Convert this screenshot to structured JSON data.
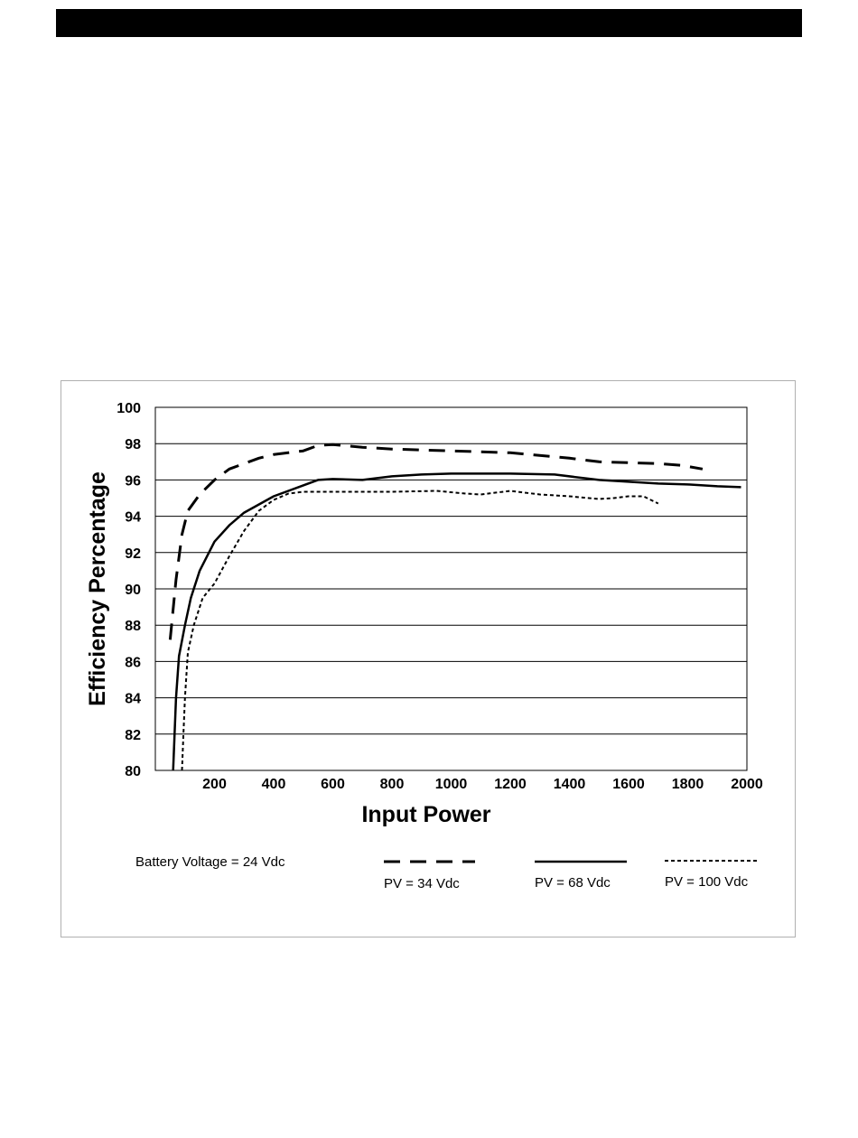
{
  "chart_data": {
    "type": "line",
    "xlabel": "Input Power",
    "ylabel": "Efficiency Percentage",
    "xlim": [
      0,
      2000
    ],
    "ylim": [
      80,
      100
    ],
    "xticks": [
      "200",
      "400",
      "600",
      "800",
      "1000",
      "1200",
      "1400",
      "1600",
      "1800",
      "2000"
    ],
    "yticks": [
      "80",
      "82",
      "84",
      "86",
      "88",
      "90",
      "92",
      "94",
      "96",
      "98",
      "100"
    ],
    "grid": "horizontal",
    "note": "Battery Voltage = 24 Vdc",
    "series": [
      {
        "name": "PV = 34 Vdc",
        "style": "dashed",
        "color": "#000000",
        "points": [
          [
            50,
            87.2
          ],
          [
            70,
            90.5
          ],
          [
            90,
            93
          ],
          [
            110,
            94.3
          ],
          [
            150,
            95.2
          ],
          [
            200,
            96
          ],
          [
            250,
            96.6
          ],
          [
            300,
            96.9
          ],
          [
            350,
            97.2
          ],
          [
            400,
            97.4
          ],
          [
            500,
            97.6
          ],
          [
            550,
            97.9
          ],
          [
            600,
            97.95
          ],
          [
            700,
            97.8
          ],
          [
            800,
            97.7
          ],
          [
            1000,
            97.6
          ],
          [
            1200,
            97.5
          ],
          [
            1400,
            97.2
          ],
          [
            1500,
            97.0
          ],
          [
            1600,
            96.95
          ],
          [
            1700,
            96.9
          ],
          [
            1780,
            96.8
          ],
          [
            1850,
            96.6
          ]
        ]
      },
      {
        "name": "PV = 68 Vdc",
        "style": "solid",
        "color": "#000000",
        "points": [
          [
            60,
            80
          ],
          [
            65,
            82
          ],
          [
            70,
            84
          ],
          [
            80,
            86.3
          ],
          [
            100,
            88
          ],
          [
            120,
            89.5
          ],
          [
            150,
            91
          ],
          [
            200,
            92.6
          ],
          [
            250,
            93.5
          ],
          [
            300,
            94.2
          ],
          [
            400,
            95.1
          ],
          [
            500,
            95.7
          ],
          [
            550,
            96
          ],
          [
            600,
            96.05
          ],
          [
            700,
            96
          ],
          [
            800,
            96.2
          ],
          [
            900,
            96.3
          ],
          [
            1000,
            96.35
          ],
          [
            1200,
            96.35
          ],
          [
            1350,
            96.3
          ],
          [
            1500,
            96
          ],
          [
            1600,
            95.9
          ],
          [
            1700,
            95.8
          ],
          [
            1800,
            95.75
          ],
          [
            1900,
            95.65
          ],
          [
            1980,
            95.6
          ]
        ]
      },
      {
        "name": "PV = 100 Vdc",
        "style": "dotted",
        "color": "#000000",
        "points": [
          [
            90,
            80
          ],
          [
            95,
            82
          ],
          [
            100,
            84
          ],
          [
            110,
            86.5
          ],
          [
            130,
            88
          ],
          [
            160,
            89.5
          ],
          [
            200,
            90.3
          ],
          [
            250,
            91.8
          ],
          [
            300,
            93.2
          ],
          [
            350,
            94.3
          ],
          [
            400,
            94.9
          ],
          [
            450,
            95.25
          ],
          [
            500,
            95.35
          ],
          [
            600,
            95.35
          ],
          [
            700,
            95.35
          ],
          [
            800,
            95.35
          ],
          [
            950,
            95.4
          ],
          [
            1050,
            95.25
          ],
          [
            1100,
            95.2
          ],
          [
            1200,
            95.4
          ],
          [
            1300,
            95.2
          ],
          [
            1400,
            95.1
          ],
          [
            1500,
            94.95
          ],
          [
            1550,
            95
          ],
          [
            1600,
            95.1
          ],
          [
            1650,
            95.1
          ],
          [
            1700,
            94.7
          ]
        ]
      }
    ]
  }
}
